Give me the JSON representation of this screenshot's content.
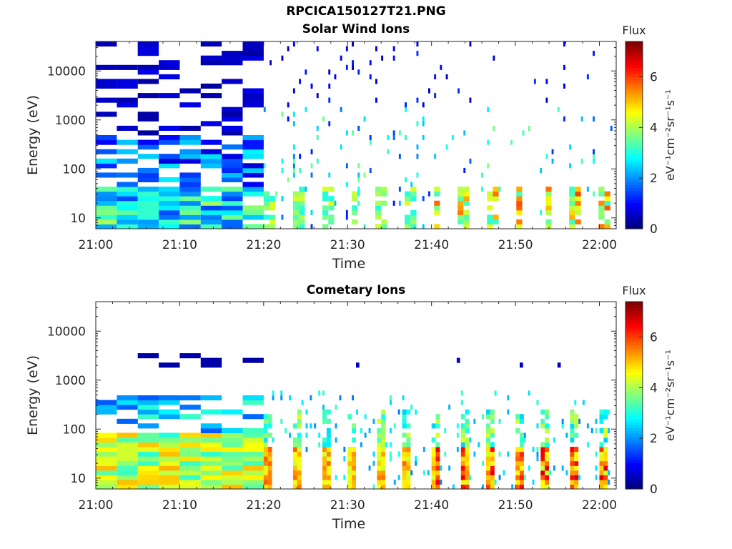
{
  "figure": {
    "title": "RPCICA150127T21.PNG"
  },
  "chart_data": [
    {
      "type": "heatmap",
      "title": "Solar Wind Ions",
      "xlabel": "Time",
      "ylabel": "Energy (eV)",
      "x_ticks": [
        "21:00",
        "21:10",
        "21:20",
        "21:30",
        "21:40",
        "21:50",
        "22:00"
      ],
      "y_ticks": [
        "10",
        "100",
        "1000",
        "10000"
      ],
      "y_scale": "log",
      "ylim": [
        6,
        40000
      ],
      "xlim_minutes": [
        0,
        62
      ],
      "colorbar": {
        "label": "Flux",
        "unit": "eV⁻¹cm⁻²sr⁻¹s⁻¹",
        "ticks": [
          0,
          2,
          4,
          6
        ],
        "range": [
          0,
          7.4
        ],
        "colormap": "jet"
      },
      "segments_description": [
        {
          "t_start": 0,
          "t_end": 20,
          "pattern": "dense",
          "high_energy_flux": 0.3,
          "low_energy_flux": 2.4
        },
        {
          "t_start": 20,
          "t_end": 40,
          "pattern": "bursts",
          "high_energy_flux": 0.4,
          "low_energy_flux": 3.6
        },
        {
          "t_start": 40,
          "t_end": 62,
          "pattern": "sparse_bursts",
          "high_energy_flux": 1.2,
          "low_energy_flux": 4.8
        }
      ]
    },
    {
      "type": "heatmap",
      "title": "Cometary Ions",
      "xlabel": "Time",
      "ylabel": "Energy (eV)",
      "x_ticks": [
        "21:00",
        "21:10",
        "21:20",
        "21:30",
        "21:40",
        "21:50",
        "22:00"
      ],
      "y_ticks": [
        "10",
        "100",
        "1000",
        "10000"
      ],
      "y_scale": "log",
      "ylim": [
        6,
        40000
      ],
      "xlim_minutes": [
        0,
        62
      ],
      "colorbar": {
        "label": "Flux",
        "unit": "eV⁻¹cm⁻²sr⁻¹s⁻¹",
        "ticks": [
          0,
          2,
          4,
          6
        ],
        "range": [
          0,
          7.4
        ],
        "colormap": "jet"
      },
      "segments_description": [
        {
          "t_start": 0,
          "t_end": 20,
          "pattern": "dense_low",
          "peak_flux": 4.8,
          "max_energy": 400
        },
        {
          "t_start": 20,
          "t_end": 62,
          "pattern": "periodic_bursts",
          "peak_flux": 6.6,
          "burst_period_min": 3.3
        }
      ]
    }
  ]
}
